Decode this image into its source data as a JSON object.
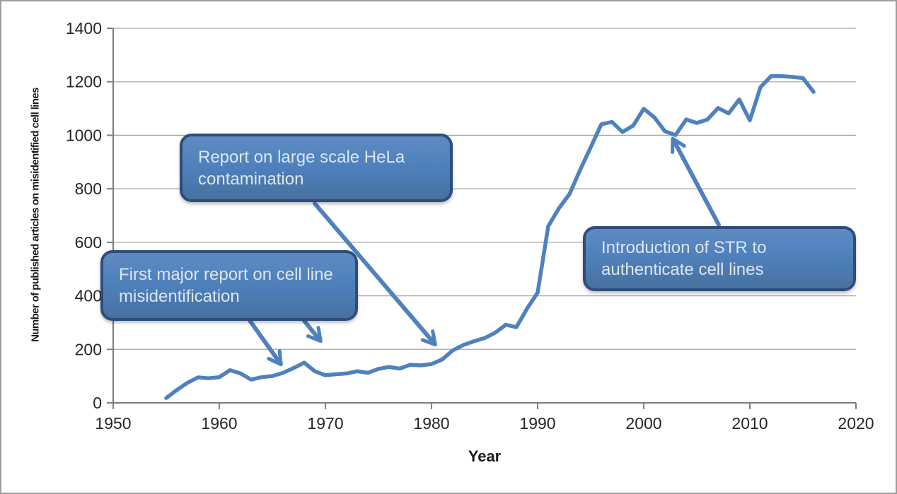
{
  "frame": {
    "background": "#ffffff",
    "border_color": "#9e9e9e"
  },
  "colors": {
    "series_line": "#4f81bd",
    "callout_fill": "#4f81bd",
    "callout_border": "#2d4d7c",
    "callout_text": "#dce6f2",
    "gridline": "#a6a6a6",
    "axis_line": "#808080",
    "tick_label": "#262626"
  },
  "chart_data": {
    "type": "line",
    "title": "",
    "xlabel": "Year",
    "ylabel": "Number of published articles on misidentified cell lines",
    "xlim": [
      1950,
      2020
    ],
    "ylim": [
      0,
      1400
    ],
    "xticks": [
      1950,
      1960,
      1970,
      1980,
      1990,
      2000,
      2010,
      2020
    ],
    "yticks": [
      0,
      200,
      400,
      600,
      800,
      1000,
      1200,
      1400
    ],
    "grid": "horizontal",
    "legend": "none",
    "line_color": "#4f81bd",
    "series": [
      {
        "name": "Published articles on misidentified cell lines",
        "x": [
          1955,
          1956,
          1957,
          1958,
          1959,
          1960,
          1961,
          1962,
          1963,
          1964,
          1965,
          1966,
          1967,
          1968,
          1969,
          1970,
          1971,
          1972,
          1973,
          1974,
          1975,
          1976,
          1977,
          1978,
          1979,
          1980,
          1981,
          1982,
          1983,
          1984,
          1985,
          1986,
          1987,
          1988,
          1989,
          1990,
          1991,
          1992,
          1993,
          1994,
          1995,
          1996,
          1997,
          1998,
          1999,
          2000,
          2001,
          2002,
          2003,
          2004,
          2005,
          2006,
          2007,
          2008,
          2009,
          2010,
          2011,
          2012,
          2013,
          2014,
          2015,
          2016
        ],
        "y": [
          18,
          48,
          75,
          95,
          92,
          96,
          122,
          110,
          87,
          96,
          100,
          112,
          130,
          150,
          118,
          103,
          107,
          110,
          118,
          112,
          127,
          134,
          128,
          142,
          140,
          145,
          162,
          196,
          216,
          230,
          242,
          262,
          292,
          283,
          352,
          412,
          660,
          727,
          780,
          870,
          955,
          1041,
          1050,
          1012,
          1036,
          1099,
          1067,
          1015,
          1001,
          1059,
          1046,
          1059,
          1102,
          1082,
          1134,
          1056,
          1180,
          1221,
          1221,
          1218,
          1214,
          1162
        ],
        "y_2016_end_value": 1162
      }
    ],
    "annotations": [
      {
        "id": "hela",
        "text": "Report on large scale HeLa contamination",
        "arrow_points_to_year": 1981
      },
      {
        "id": "first",
        "text": "First major report on cell line misidentification",
        "arrow_points_to_year": 1966
      },
      {
        "id": "str",
        "text": "Introduction of STR to authenticate cell lines",
        "arrow_points_to_year": 2002
      }
    ]
  }
}
